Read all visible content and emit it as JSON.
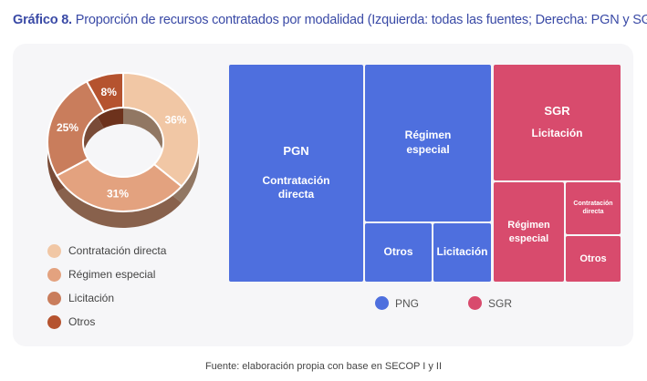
{
  "title": {
    "prefix": "Gráfico 8.",
    "text": "Proporción de recursos contratados por modalidad (Izquierda: todas las fuentes; Derecha: PGN y SGR)"
  },
  "chart_data": [
    {
      "type": "pie",
      "categories": [
        "Contratación directa",
        "Régimen especial",
        "Licitación",
        "Otros"
      ],
      "values": [
        36,
        31,
        25,
        8
      ],
      "labels": [
        "36%",
        "31%",
        "25%",
        "8%"
      ],
      "colors": [
        "#f1c7a5",
        "#e3a27f",
        "#c97d5c",
        "#b5532f"
      ],
      "legend": "bottom-left"
    },
    {
      "type": "treemap",
      "groups": [
        {
          "name": "PGN",
          "color": "#4e6fde",
          "children": [
            "Contratación directa",
            "Régimen especial",
            "Otros",
            "Licitación"
          ]
        },
        {
          "name": "SGR",
          "color": "#d84b6d",
          "children": [
            "Licitación",
            "Régimen especial",
            "Contratación directa",
            "Otros"
          ]
        }
      ],
      "legend_entries": [
        "PNG",
        "SGR"
      ],
      "legend": "bottom"
    }
  ],
  "treemap": {
    "pgn_label": "PGN",
    "pgn_directa": "Contratación directa",
    "pgn_regimen": "Régimen especial",
    "pgn_otros": "Otros",
    "pgn_licitacion": "Licitación",
    "sgr_label": "SGR",
    "sgr_licitacion": "Licitación",
    "sgr_regimen": "Régimen especial",
    "sgr_directa": "Contratación directa",
    "sgr_otros": "Otros"
  },
  "legend_right": {
    "pgn": "PNG",
    "sgr": "SGR"
  },
  "source": "Fuente: elaboración propia con base en SECOP I y II"
}
